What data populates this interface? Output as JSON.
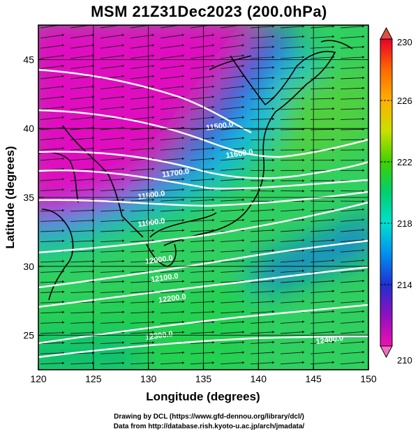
{
  "title": "MSM 21Z31Dec2023 (200.0hPa)",
  "xlabel": "Longitude (degrees)",
  "ylabel": "Latitude  (degrees)",
  "credit_line1": "Drawing by DCL (https://www.gfd-dennou.org/library/dcl/)",
  "credit_line2": "Data from http://database.rish.kyoto-u.ac.jp/arch/jmadata/",
  "colors": {
    "land_outline": "#000000",
    "contour": "#ffffff",
    "vector": "#1a1a1a",
    "grid": "#000000"
  },
  "map": {
    "lon_range": [
      120,
      150
    ],
    "lat_range": [
      22.5,
      47.5
    ],
    "x_ticks": [
      "120",
      "125",
      "130",
      "135",
      "140",
      "145",
      "150"
    ],
    "y_ticks": [
      "25",
      "30",
      "35",
      "40",
      "45"
    ],
    "grid_lon": [
      125,
      130,
      135,
      140,
      145
    ],
    "grid_lat": [
      25,
      30,
      35,
      40,
      45
    ]
  },
  "colorbar": {
    "range": [
      210,
      230
    ],
    "labels": [
      "230",
      "226",
      "222",
      "218",
      "214",
      "210"
    ],
    "label_values": [
      230,
      226,
      222,
      218,
      214,
      210
    ],
    "dashed_levels": [
      226,
      222,
      218,
      214
    ]
  },
  "contours": [
    {
      "label": "11500.0",
      "lon": 136.5,
      "lat": 40.0
    },
    {
      "label": "11600.0",
      "lon": 138.3,
      "lat": 38.0
    },
    {
      "label": "11700.0",
      "lon": 132.5,
      "lat": 36.6
    },
    {
      "label": "11800.0",
      "lon": 130.3,
      "lat": 35.0
    },
    {
      "label": "11900.0",
      "lon": 130.3,
      "lat": 33.0
    },
    {
      "label": "12000.0",
      "lon": 131.0,
      "lat": 30.3
    },
    {
      "label": "12100.0",
      "lon": 131.5,
      "lat": 29.0
    },
    {
      "label": "12200.0",
      "lon": 132.2,
      "lat": 27.5
    },
    {
      "label": "12300.0",
      "lon": 131.0,
      "lat": 24.8
    },
    {
      "label": "12400.0",
      "lon": 146.5,
      "lat": 24.5
    }
  ]
}
